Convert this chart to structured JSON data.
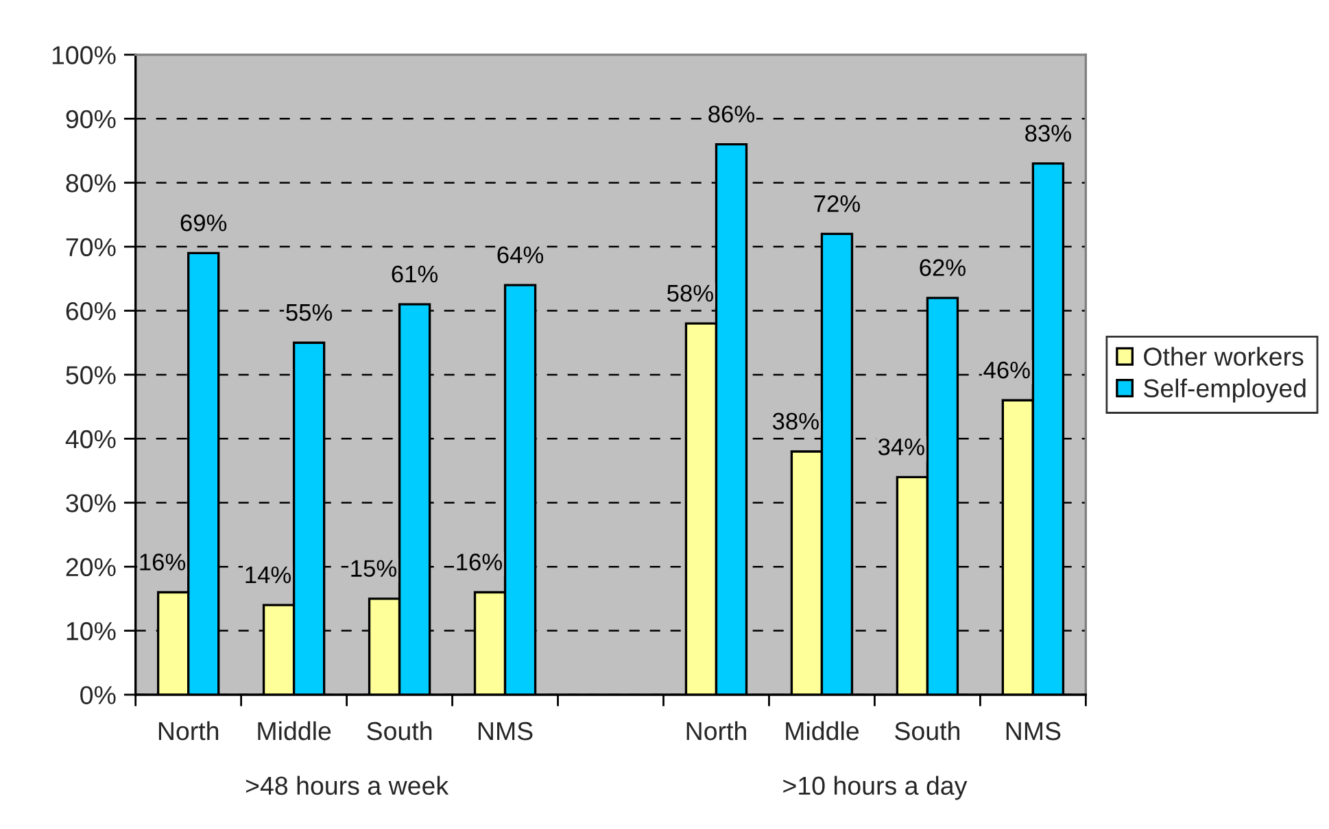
{
  "chart_data": {
    "type": "bar",
    "categories": [
      "North",
      "Middle",
      "South",
      "NMS",
      null,
      "North",
      "Middle",
      "South",
      "NMS"
    ],
    "series": [
      {
        "name": "Other workers",
        "color": "#ffff99",
        "values": [
          16,
          14,
          15,
          16,
          null,
          58,
          38,
          34,
          46
        ],
        "value_labels": [
          "16%",
          "14%",
          "15%",
          "16%",
          null,
          "58%",
          "38%",
          "34%",
          "46%"
        ]
      },
      {
        "name": "Self-employed",
        "color": "#00ccff",
        "values": [
          69,
          55,
          61,
          64,
          null,
          86,
          72,
          62,
          83
        ],
        "value_labels": [
          "69%",
          "55%",
          "61%",
          "64%",
          null,
          "86%",
          "72%",
          "62%",
          "83%"
        ]
      }
    ],
    "ylim": [
      0,
      100
    ],
    "yticks": [
      {
        "value": 0,
        "label": "0%"
      },
      {
        "value": 10,
        "label": "10%"
      },
      {
        "value": 20,
        "label": "20%"
      },
      {
        "value": 30,
        "label": "30%"
      },
      {
        "value": 40,
        "label": "40%"
      },
      {
        "value": 50,
        "label": "50%"
      },
      {
        "value": 60,
        "label": "60%"
      },
      {
        "value": 70,
        "label": "70%"
      },
      {
        "value": 80,
        "label": "80%"
      },
      {
        "value": 90,
        "label": "90%"
      },
      {
        "value": 100,
        "label": "100%"
      }
    ],
    "annotations": [
      ">48 hours a week",
      ">10 hours a day"
    ],
    "grid": "y",
    "legend": "right"
  }
}
